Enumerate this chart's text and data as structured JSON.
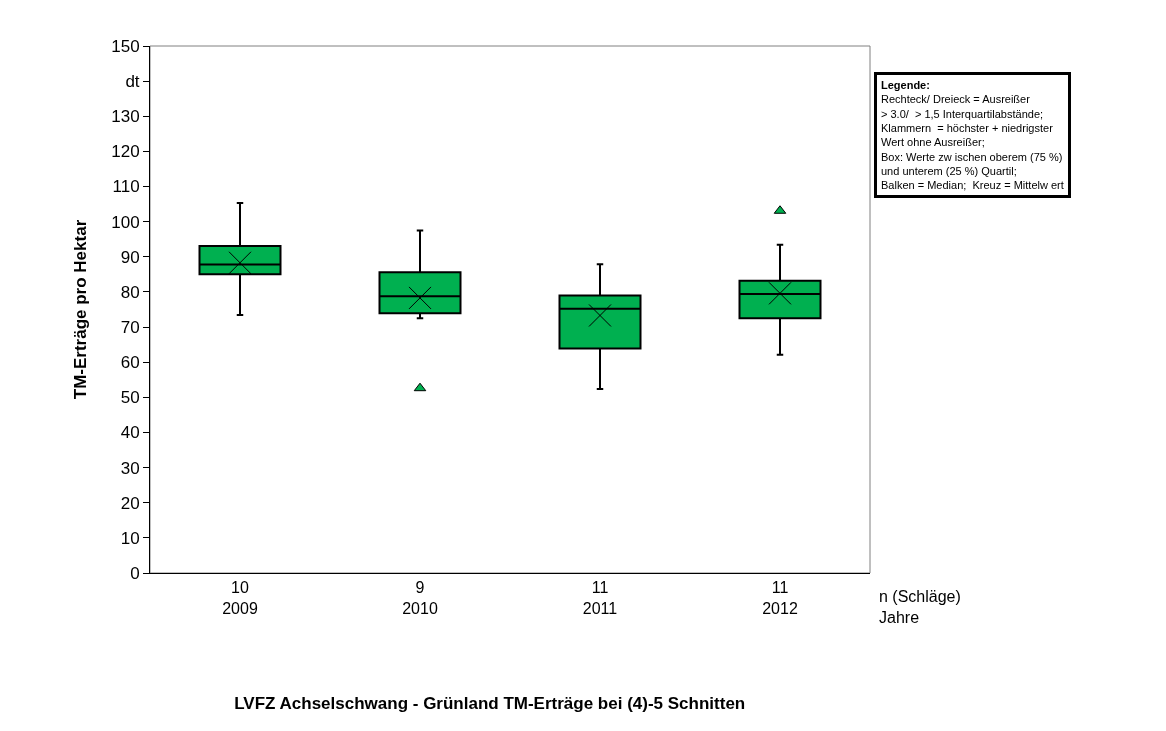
{
  "chart_data": {
    "type": "box",
    "title": "LVFZ Achselschwang - Grünland TM-Erträge bei (4)-5 Schnitten",
    "ylabel": "TM-Erträge pro Hektar",
    "categories": [
      "10\n2009",
      "9\n2010",
      "11\n2011",
      "11\n2012"
    ],
    "color": "#00b050",
    "boxes": [
      {
        "low": 73.4,
        "q1": 85.0,
        "median": 87.8,
        "q3": 93.1,
        "high": 105.3,
        "mean": 88.3
      },
      {
        "low": 72.5,
        "q1": 73.9,
        "median": 78.8,
        "q3": 85.6,
        "high": 97.5,
        "mean": 78.3,
        "outliers": [
          52.6
        ]
      },
      {
        "low": 52.4,
        "q1": 63.9,
        "median": 75.2,
        "q3": 79.0,
        "high": 87.9,
        "mean": 73.3
      },
      {
        "low": 62.1,
        "q1": 72.5,
        "median": 79.4,
        "q3": 83.2,
        "high": 93.4,
        "mean": 79.6,
        "outliers": [
          103.1
        ]
      }
    ],
    "ylim": [
      0,
      150
    ],
    "yticks": [
      0,
      10,
      20,
      30,
      40,
      50,
      60,
      70,
      80,
      90,
      100,
      110,
      120,
      130,
      {
        "value": 140,
        "label": "dt"
      },
      150
    ],
    "grid": false,
    "annotations": [
      "n (Schläge)\nJahre",
      "Legende:\nRechteck/ Dreieck = Ausreißer\n> 3.0/  > 1,5 Interquartilabstände;\nKlammern  = höchster + niedrigster\nWert ohne Ausreißer;\nBox: Werte zw ischen oberem (75 %)\nund unterem (25 %) Quartil;\nBalken = Median;  Kreuz = Mittelw ert"
    ]
  }
}
